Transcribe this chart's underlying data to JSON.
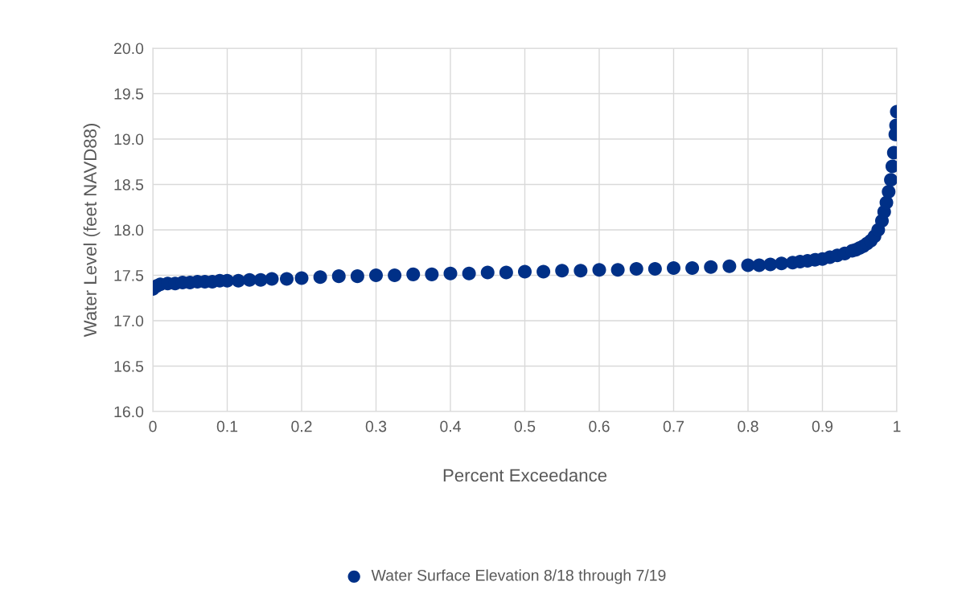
{
  "chart_data": {
    "type": "scatter",
    "xlabel": "Percent Exceedance",
    "ylabel": "Water Level (feet NAVD88)",
    "x": [
      0,
      0.005,
      0.01,
      0.02,
      0.03,
      0.04,
      0.05,
      0.06,
      0.07,
      0.08,
      0.09,
      0.1,
      0.115,
      0.13,
      0.145,
      0.16,
      0.18,
      0.2,
      0.225,
      0.25,
      0.275,
      0.3,
      0.325,
      0.35,
      0.375,
      0.4,
      0.425,
      0.45,
      0.475,
      0.5,
      0.525,
      0.55,
      0.575,
      0.6,
      0.625,
      0.65,
      0.675,
      0.7,
      0.725,
      0.75,
      0.775,
      0.8,
      0.815,
      0.83,
      0.845,
      0.86,
      0.87,
      0.88,
      0.89,
      0.9,
      0.91,
      0.92,
      0.93,
      0.94,
      0.945,
      0.95,
      0.955,
      0.96,
      0.965,
      0.97,
      0.975,
      0.98,
      0.983,
      0.986,
      0.989,
      0.992,
      0.994,
      0.996,
      0.998,
      0.999,
      1
    ],
    "series": [
      {
        "name": "Water Surface Elevation 8/18 through 7/19",
        "color": "#003087",
        "values": [
          17.35,
          17.38,
          17.4,
          17.41,
          17.41,
          17.42,
          17.42,
          17.43,
          17.43,
          17.43,
          17.44,
          17.44,
          17.44,
          17.45,
          17.45,
          17.46,
          17.46,
          17.47,
          17.48,
          17.49,
          17.49,
          17.5,
          17.5,
          17.51,
          17.51,
          17.52,
          17.52,
          17.53,
          17.53,
          17.54,
          17.54,
          17.55,
          17.55,
          17.56,
          17.56,
          17.57,
          17.57,
          17.58,
          17.58,
          17.59,
          17.6,
          17.61,
          17.61,
          17.62,
          17.63,
          17.64,
          17.65,
          17.66,
          17.67,
          17.68,
          17.7,
          17.72,
          17.74,
          17.77,
          17.78,
          17.8,
          17.82,
          17.85,
          17.88,
          17.93,
          18.0,
          18.1,
          18.2,
          18.3,
          18.42,
          18.55,
          18.7,
          18.85,
          19.05,
          19.15,
          19.3
        ]
      }
    ],
    "xlim": [
      0,
      1
    ],
    "xticks": [
      0,
      0.1,
      0.2,
      0.3,
      0.4,
      0.5,
      0.6,
      0.7,
      0.8,
      0.9,
      1
    ],
    "ylim": [
      16,
      20
    ],
    "yticks": [
      {
        "value": 16,
        "label": "16.0"
      },
      {
        "value": 16.5,
        "label": "16.5"
      },
      {
        "value": 17,
        "label": "17.0"
      },
      {
        "value": 17.5,
        "label": "17.5"
      },
      {
        "value": 18,
        "label": "18.0"
      },
      {
        "value": 18.5,
        "label": "18.5"
      },
      {
        "value": 19,
        "label": "19.0"
      },
      {
        "value": 19.5,
        "label": "19.5"
      },
      {
        "value": 20,
        "label": "20.0"
      }
    ],
    "grid": true,
    "legend": "bottom",
    "marker": "circle"
  }
}
